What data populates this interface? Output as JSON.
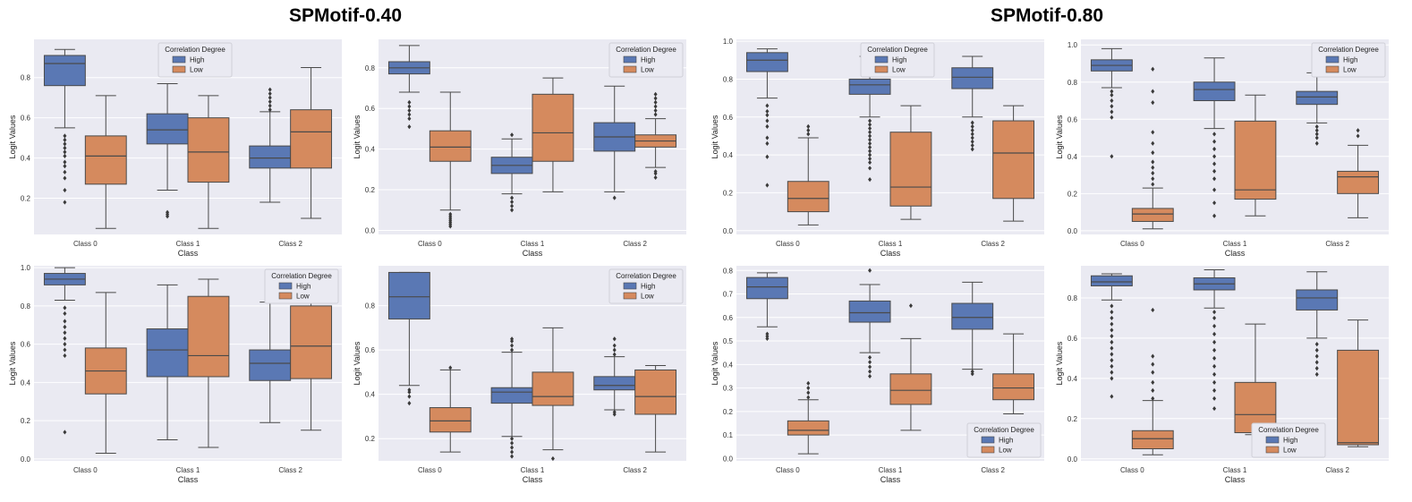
{
  "group_titles": [
    "SPMotif-0.40",
    "SPMotif-0.80"
  ],
  "colors": {
    "high": "#5a78b4",
    "low": "#d58a5e",
    "bg": "#eaeaf2",
    "line": "#4a4a4a"
  },
  "legend": {
    "title": "Correlation Degree",
    "high_label": "High",
    "low_label": "Low"
  },
  "chart_data": [
    {
      "type": "box",
      "group": "SPMotif-0.40",
      "xlabel": "Class",
      "ylabel": "Logit Values",
      "categories": [
        "Class 0",
        "Class 1",
        "Class 2"
      ],
      "ylim": [
        0.02,
        0.99
      ],
      "yticks": [
        0.2,
        0.4,
        0.6,
        0.8
      ],
      "legend_position": "top-center",
      "series": [
        {
          "name": "High",
          "boxes": [
            {
              "whislo": 0.55,
              "q1": 0.76,
              "med": 0.87,
              "q3": 0.91,
              "whishi": 0.94,
              "fliers": [
                0.18,
                0.24,
                0.3,
                0.33,
                0.36,
                0.38,
                0.41,
                0.43,
                0.45,
                0.47,
                0.49,
                0.51
              ]
            },
            {
              "whislo": 0.24,
              "q1": 0.47,
              "med": 0.54,
              "q3": 0.62,
              "whishi": 0.77,
              "fliers": [
                0.11,
                0.12,
                0.13
              ]
            },
            {
              "whislo": 0.18,
              "q1": 0.35,
              "med": 0.4,
              "q3": 0.46,
              "whishi": 0.63,
              "fliers": [
                0.64,
                0.66,
                0.68,
                0.7,
                0.72,
                0.74
              ]
            }
          ]
        },
        {
          "name": "Low",
          "boxes": [
            {
              "whislo": 0.05,
              "q1": 0.27,
              "med": 0.41,
              "q3": 0.51,
              "whishi": 0.71,
              "fliers": []
            },
            {
              "whislo": 0.05,
              "q1": 0.28,
              "med": 0.43,
              "q3": 0.6,
              "whishi": 0.71,
              "fliers": []
            },
            {
              "whislo": 0.1,
              "q1": 0.35,
              "med": 0.53,
              "q3": 0.64,
              "whishi": 0.85,
              "fliers": []
            }
          ]
        }
      ]
    },
    {
      "type": "box",
      "group": "SPMotif-0.40",
      "xlabel": "Class",
      "ylabel": "Logit Values",
      "categories": [
        "Class 0",
        "Class 1",
        "Class 2"
      ],
      "ylim": [
        -0.02,
        0.94
      ],
      "yticks": [
        0.0,
        0.2,
        0.4,
        0.6,
        0.8
      ],
      "legend_position": "top-right",
      "series": [
        {
          "name": "High",
          "boxes": [
            {
              "whislo": 0.68,
              "q1": 0.77,
              "med": 0.8,
              "q3": 0.83,
              "whishi": 0.91,
              "fliers": [
                0.51,
                0.55,
                0.57,
                0.59,
                0.61,
                0.63
              ]
            },
            {
              "whislo": 0.18,
              "q1": 0.28,
              "med": 0.32,
              "q3": 0.36,
              "whishi": 0.45,
              "fliers": [
                0.1,
                0.12,
                0.14,
                0.16,
                0.47
              ]
            },
            {
              "whislo": 0.19,
              "q1": 0.39,
              "med": 0.46,
              "q3": 0.53,
              "whishi": 0.71,
              "fliers": [
                0.16
              ]
            }
          ]
        },
        {
          "name": "Low",
          "boxes": [
            {
              "whislo": 0.1,
              "q1": 0.34,
              "med": 0.41,
              "q3": 0.49,
              "whishi": 0.68,
              "fliers": [
                0.02,
                0.03,
                0.04,
                0.05,
                0.06,
                0.07,
                0.08
              ]
            },
            {
              "whislo": 0.19,
              "q1": 0.34,
              "med": 0.48,
              "q3": 0.67,
              "whishi": 0.75,
              "fliers": []
            },
            {
              "whislo": 0.31,
              "q1": 0.41,
              "med": 0.44,
              "q3": 0.47,
              "whishi": 0.55,
              "fliers": [
                0.26,
                0.28,
                0.29,
                0.57,
                0.59,
                0.61,
                0.63,
                0.65,
                0.67
              ]
            }
          ]
        }
      ]
    },
    {
      "type": "box",
      "group": "SPMotif-0.80",
      "xlabel": "Class",
      "ylabel": "Logit Values",
      "categories": [
        "Class 0",
        "Class 1",
        "Class 2"
      ],
      "ylim": [
        -0.02,
        1.01
      ],
      "yticks": [
        0.0,
        0.2,
        0.4,
        0.6,
        0.8,
        1.0
      ],
      "legend_position": "top-center",
      "series": [
        {
          "name": "High",
          "boxes": [
            {
              "whislo": 0.7,
              "q1": 0.84,
              "med": 0.9,
              "q3": 0.94,
              "whishi": 0.96,
              "fliers": [
                0.24,
                0.39,
                0.46,
                0.49,
                0.55,
                0.58,
                0.61,
                0.63,
                0.66
              ]
            },
            {
              "whislo": 0.6,
              "q1": 0.72,
              "med": 0.77,
              "q3": 0.8,
              "whishi": 0.92,
              "fliers": [
                0.27,
                0.33,
                0.36,
                0.38,
                0.4,
                0.42,
                0.44,
                0.46,
                0.48,
                0.5,
                0.52,
                0.54,
                0.56,
                0.58
              ]
            },
            {
              "whislo": 0.6,
              "q1": 0.75,
              "med": 0.81,
              "q3": 0.86,
              "whishi": 0.92,
              "fliers": [
                0.43,
                0.45,
                0.47,
                0.49,
                0.51,
                0.53,
                0.55,
                0.57
              ]
            }
          ]
        },
        {
          "name": "Low",
          "boxes": [
            {
              "whislo": 0.03,
              "q1": 0.1,
              "med": 0.17,
              "q3": 0.26,
              "whishi": 0.49,
              "fliers": [
                0.51,
                0.53,
                0.55
              ]
            },
            {
              "whislo": 0.06,
              "q1": 0.13,
              "med": 0.23,
              "q3": 0.52,
              "whishi": 0.66,
              "fliers": []
            },
            {
              "whislo": 0.05,
              "q1": 0.17,
              "med": 0.41,
              "q3": 0.58,
              "whishi": 0.66,
              "fliers": []
            }
          ]
        }
      ]
    },
    {
      "type": "box",
      "group": "SPMotif-0.80",
      "xlabel": "Class",
      "ylabel": "Logit Values",
      "categories": [
        "Class 0",
        "Class 1",
        "Class 2"
      ],
      "ylim": [
        -0.02,
        1.03
      ],
      "yticks": [
        0.0,
        0.2,
        0.4,
        0.6,
        0.8,
        1.0
      ],
      "legend_position": "top-right",
      "series": [
        {
          "name": "High",
          "boxes": [
            {
              "whislo": 0.77,
              "q1": 0.86,
              "med": 0.89,
              "q3": 0.92,
              "whishi": 0.98,
              "fliers": [
                0.4,
                0.61,
                0.64,
                0.67,
                0.7,
                0.73,
                0.75
              ]
            },
            {
              "whislo": 0.55,
              "q1": 0.7,
              "med": 0.76,
              "q3": 0.8,
              "whishi": 0.93,
              "fliers": [
                0.08,
                0.15,
                0.22,
                0.28,
                0.32,
                0.36,
                0.4,
                0.44,
                0.48,
                0.52
              ]
            },
            {
              "whislo": 0.58,
              "q1": 0.68,
              "med": 0.72,
              "q3": 0.75,
              "whishi": 0.85,
              "fliers": [
                0.47,
                0.5,
                0.52,
                0.54,
                0.56
              ]
            }
          ]
        },
        {
          "name": "Low",
          "boxes": [
            {
              "whislo": 0.01,
              "q1": 0.05,
              "med": 0.09,
              "q3": 0.12,
              "whishi": 0.23,
              "fliers": [
                0.25,
                0.28,
                0.31,
                0.34,
                0.37,
                0.42,
                0.47,
                0.53,
                0.69,
                0.75,
                0.87
              ]
            },
            {
              "whislo": 0.08,
              "q1": 0.17,
              "med": 0.22,
              "q3": 0.59,
              "whishi": 0.73,
              "fliers": []
            },
            {
              "whislo": 0.07,
              "q1": 0.2,
              "med": 0.29,
              "q3": 0.32,
              "whishi": 0.46,
              "fliers": [
                0.51,
                0.54
              ]
            }
          ]
        }
      ]
    },
    {
      "type": "box",
      "group": "SPMotif-0.40",
      "xlabel": "Class",
      "ylabel": "Logit Values",
      "categories": [
        "Class 0",
        "Class 1",
        "Class 2"
      ],
      "ylim": [
        -0.01,
        1.01
      ],
      "yticks": [
        0.0,
        0.2,
        0.4,
        0.6,
        0.8,
        1.0
      ],
      "legend_position": "top-right",
      "series": [
        {
          "name": "High",
          "boxes": [
            {
              "whislo": 0.83,
              "q1": 0.91,
              "med": 0.94,
              "q3": 0.97,
              "whishi": 1.0,
              "fliers": [
                0.14,
                0.54,
                0.57,
                0.6,
                0.63,
                0.66,
                0.69,
                0.72,
                0.76,
                0.79
              ]
            },
            {
              "whislo": 0.1,
              "q1": 0.43,
              "med": 0.57,
              "q3": 0.68,
              "whishi": 0.91,
              "fliers": []
            },
            {
              "whislo": 0.19,
              "q1": 0.41,
              "med": 0.5,
              "q3": 0.57,
              "whishi": 0.82,
              "fliers": [
                0.83
              ]
            }
          ]
        },
        {
          "name": "Low",
          "boxes": [
            {
              "whislo": 0.03,
              "q1": 0.34,
              "med": 0.46,
              "q3": 0.58,
              "whishi": 0.87,
              "fliers": []
            },
            {
              "whislo": 0.06,
              "q1": 0.43,
              "med": 0.54,
              "q3": 0.85,
              "whishi": 0.94,
              "fliers": []
            },
            {
              "whislo": 0.15,
              "q1": 0.42,
              "med": 0.59,
              "q3": 0.8,
              "whishi": 0.85,
              "fliers": []
            }
          ]
        }
      ]
    },
    {
      "type": "box",
      "group": "SPMotif-0.40",
      "xlabel": "Class",
      "ylabel": "Logit Values",
      "categories": [
        "Class 0",
        "Class 1",
        "Class 2"
      ],
      "ylim": [
        0.1,
        0.98
      ],
      "yticks": [
        0.2,
        0.4,
        0.6,
        0.8
      ],
      "legend_position": "top-right",
      "series": [
        {
          "name": "High",
          "boxes": [
            {
              "whislo": 0.44,
              "q1": 0.74,
              "med": 0.84,
              "q3": 0.95,
              "whishi": 0.95,
              "fliers": [
                0.36,
                0.39,
                0.41,
                0.42
              ]
            },
            {
              "whislo": 0.21,
              "q1": 0.36,
              "med": 0.41,
              "q3": 0.43,
              "whishi": 0.59,
              "fliers": [
                0.12,
                0.14,
                0.16,
                0.18,
                0.2,
                0.6,
                0.62,
                0.64,
                0.65
              ]
            },
            {
              "whislo": 0.33,
              "q1": 0.42,
              "med": 0.44,
              "q3": 0.48,
              "whishi": 0.57,
              "fliers": [
                0.31,
                0.32,
                0.58,
                0.6,
                0.62,
                0.65
              ]
            }
          ]
        },
        {
          "name": "Low",
          "boxes": [
            {
              "whislo": 0.14,
              "q1": 0.23,
              "med": 0.28,
              "q3": 0.34,
              "whishi": 0.51,
              "fliers": [
                0.52
              ]
            },
            {
              "whislo": 0.15,
              "q1": 0.35,
              "med": 0.39,
              "q3": 0.5,
              "whishi": 0.7,
              "fliers": [
                0.11
              ]
            },
            {
              "whislo": 0.14,
              "q1": 0.31,
              "med": 0.39,
              "q3": 0.51,
              "whishi": 0.53,
              "fliers": []
            }
          ]
        }
      ]
    },
    {
      "type": "box",
      "group": "SPMotif-0.80",
      "xlabel": "Class",
      "ylabel": "Logit Values",
      "categories": [
        "Class 0",
        "Class 1",
        "Class 2"
      ],
      "ylim": [
        -0.01,
        0.82
      ],
      "yticks": [
        0.0,
        0.1,
        0.2,
        0.3,
        0.4,
        0.5,
        0.6,
        0.7,
        0.8
      ],
      "legend_position": "bottom-right",
      "series": [
        {
          "name": "High",
          "boxes": [
            {
              "whislo": 0.56,
              "q1": 0.68,
              "med": 0.73,
              "q3": 0.77,
              "whishi": 0.79,
              "fliers": [
                0.51,
                0.52,
                0.53
              ]
            },
            {
              "whislo": 0.45,
              "q1": 0.58,
              "med": 0.62,
              "q3": 0.67,
              "whishi": 0.74,
              "fliers": [
                0.35,
                0.37,
                0.39,
                0.41,
                0.43,
                0.8
              ]
            },
            {
              "whislo": 0.38,
              "q1": 0.55,
              "med": 0.6,
              "q3": 0.66,
              "whishi": 0.75,
              "fliers": [
                0.36,
                0.37
              ]
            }
          ]
        },
        {
          "name": "Low",
          "boxes": [
            {
              "whislo": 0.02,
              "q1": 0.1,
              "med": 0.12,
              "q3": 0.16,
              "whishi": 0.25,
              "fliers": [
                0.26,
                0.28,
                0.3,
                0.32
              ]
            },
            {
              "whislo": 0.12,
              "q1": 0.23,
              "med": 0.29,
              "q3": 0.36,
              "whishi": 0.51,
              "fliers": [
                0.65
              ]
            },
            {
              "whislo": 0.19,
              "q1": 0.25,
              "med": 0.3,
              "q3": 0.36,
              "whishi": 0.53,
              "fliers": []
            }
          ]
        }
      ]
    },
    {
      "type": "box",
      "group": "SPMotif-0.80",
      "xlabel": "Class",
      "ylabel": "Logit Values",
      "categories": [
        "Class 0",
        "Class 1",
        "Class 2"
      ],
      "ylim": [
        -0.01,
        0.96
      ],
      "yticks": [
        0.0,
        0.2,
        0.4,
        0.6,
        0.8
      ],
      "legend_position": "bottom-center",
      "series": [
        {
          "name": "High",
          "boxes": [
            {
              "whislo": 0.79,
              "q1": 0.86,
              "med": 0.88,
              "q3": 0.91,
              "whishi": 0.92,
              "fliers": [
                0.31,
                0.4,
                0.43,
                0.46,
                0.49,
                0.52,
                0.55,
                0.58,
                0.61,
                0.64,
                0.67,
                0.7,
                0.73,
                0.76
              ]
            },
            {
              "whislo": 0.75,
              "q1": 0.84,
              "med": 0.87,
              "q3": 0.9,
              "whishi": 0.94,
              "fliers": [
                0.25,
                0.3,
                0.34,
                0.38,
                0.42,
                0.46,
                0.5,
                0.54,
                0.58,
                0.62,
                0.66,
                0.7,
                0.73
              ]
            },
            {
              "whislo": 0.6,
              "q1": 0.74,
              "med": 0.8,
              "q3": 0.84,
              "whishi": 0.93,
              "fliers": [
                0.42,
                0.45,
                0.48,
                0.51,
                0.54,
                0.57
              ]
            }
          ]
        },
        {
          "name": "Low",
          "boxes": [
            {
              "whislo": 0.02,
              "q1": 0.05,
              "med": 0.1,
              "q3": 0.14,
              "whishi": 0.29,
              "fliers": [
                0.3,
                0.34,
                0.38,
                0.43,
                0.47,
                0.51,
                0.74
              ]
            },
            {
              "whislo": 0.12,
              "q1": 0.13,
              "med": 0.22,
              "q3": 0.38,
              "whishi": 0.67,
              "fliers": []
            },
            {
              "whislo": 0.06,
              "q1": 0.07,
              "med": 0.08,
              "q3": 0.54,
              "whishi": 0.69,
              "fliers": []
            }
          ]
        }
      ]
    }
  ]
}
